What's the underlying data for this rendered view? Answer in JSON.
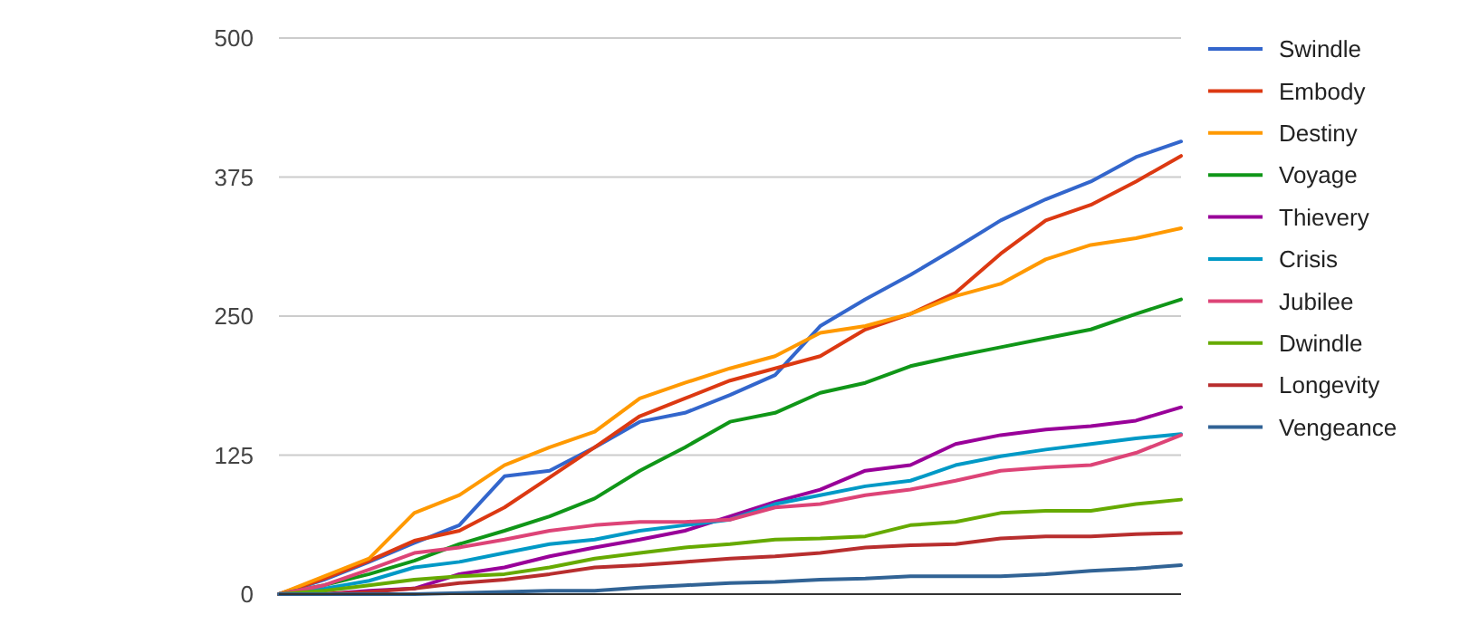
{
  "chart_data": {
    "type": "line",
    "categories": [
      null,
      null,
      null,
      null,
      null,
      null,
      null,
      null,
      null,
      null,
      null,
      null,
      null,
      null,
      null,
      null,
      null,
      null,
      null,
      null,
      null
    ],
    "ylim": [
      0,
      500
    ],
    "yticks": [
      0,
      125,
      250,
      375,
      500
    ],
    "grid": "y",
    "legend": "right",
    "marker": "none",
    "line_style": "solid",
    "series": [
      {
        "name": "Swindle",
        "color": "#3366cc",
        "values": [
          0,
          13,
          29,
          46,
          62,
          106,
          111,
          132,
          155,
          163,
          179,
          197,
          241,
          265,
          287,
          311,
          336,
          355,
          371,
          393,
          407
        ]
      },
      {
        "name": "Embody",
        "color": "#dc3912",
        "values": [
          0,
          14,
          30,
          48,
          57,
          78,
          105,
          132,
          160,
          176,
          192,
          203,
          214,
          238,
          252,
          271,
          306,
          336,
          350,
          371,
          394
        ]
      },
      {
        "name": "Destiny",
        "color": "#ff9900",
        "values": [
          0,
          16,
          32,
          73,
          89,
          116,
          132,
          146,
          176,
          190,
          203,
          214,
          235,
          241,
          252,
          268,
          279,
          301,
          314,
          320,
          329
        ]
      },
      {
        "name": "Voyage",
        "color": "#109618",
        "values": [
          0,
          8,
          18,
          30,
          45,
          57,
          70,
          86,
          111,
          132,
          155,
          163,
          181,
          190,
          205,
          214,
          222,
          230,
          238,
          252,
          265
        ]
      },
      {
        "name": "Thievery",
        "color": "#990099",
        "values": [
          0,
          0,
          3,
          5,
          18,
          24,
          34,
          42,
          49,
          57,
          70,
          83,
          94,
          111,
          116,
          135,
          143,
          148,
          151,
          156,
          168
        ]
      },
      {
        "name": "Crisis",
        "color": "#0099c6",
        "values": [
          0,
          5,
          12,
          24,
          29,
          37,
          45,
          49,
          57,
          62,
          67,
          81,
          89,
          97,
          102,
          116,
          124,
          130,
          135,
          140,
          144
        ]
      },
      {
        "name": "Jubilee",
        "color": "#dd4477",
        "values": [
          0,
          8,
          22,
          37,
          42,
          49,
          57,
          62,
          65,
          65,
          67,
          78,
          81,
          89,
          94,
          102,
          111,
          114,
          116,
          127,
          143
        ]
      },
      {
        "name": "Dwindle",
        "color": "#66aa00",
        "values": [
          0,
          3,
          8,
          13,
          16,
          18,
          24,
          32,
          37,
          42,
          45,
          49,
          50,
          52,
          62,
          65,
          73,
          75,
          75,
          81,
          85
        ]
      },
      {
        "name": "Longevity",
        "color": "#b82e2e",
        "values": [
          0,
          0,
          2,
          5,
          10,
          13,
          18,
          24,
          26,
          29,
          32,
          34,
          37,
          42,
          44,
          45,
          50,
          52,
          52,
          54,
          55
        ]
      },
      {
        "name": "Vengeance",
        "color": "#316395",
        "values": [
          0,
          0,
          0,
          0,
          1,
          2,
          3,
          3,
          6,
          8,
          10,
          11,
          13,
          14,
          16,
          16,
          16,
          18,
          21,
          23,
          26
        ]
      }
    ]
  }
}
